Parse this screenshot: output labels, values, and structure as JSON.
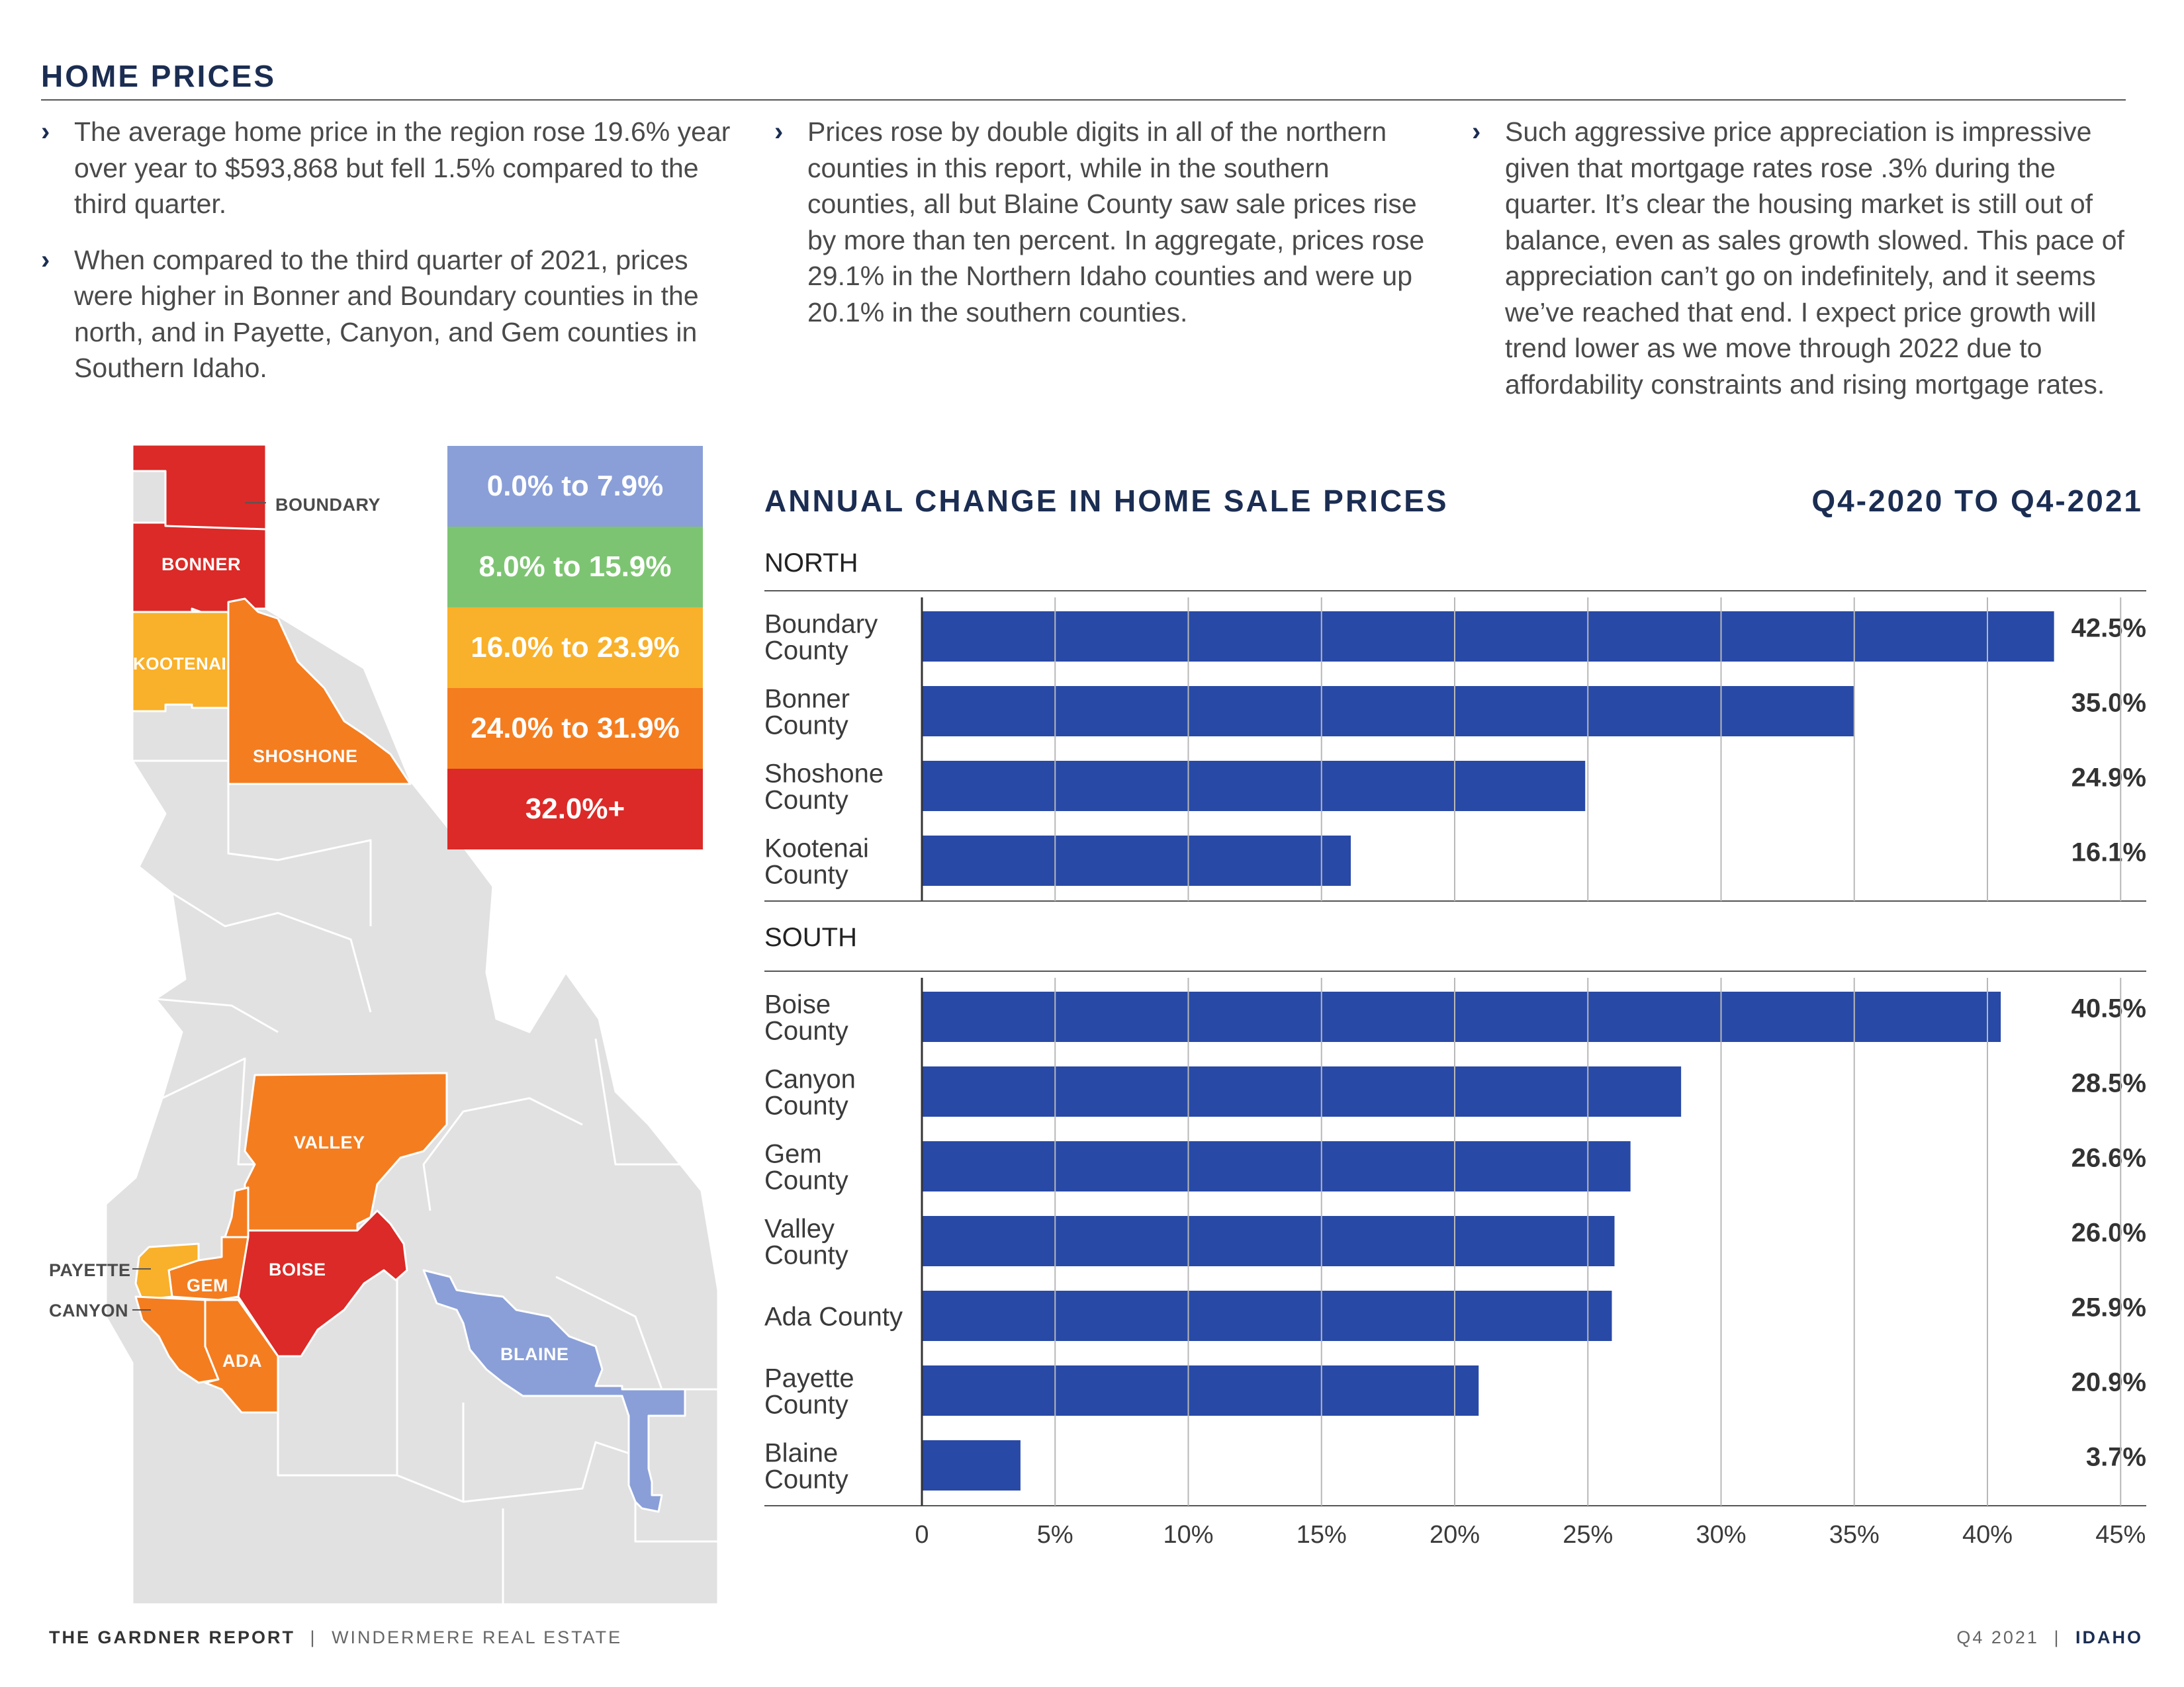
{
  "header": {
    "title": "HOME PRICES"
  },
  "columns": [
    [
      "The average home price in the region rose 19.6% year over year to $593,868 but fell 1.5% compared to the third quarter.",
      "When compared to the third quarter of 2021, prices were higher in Bonner and Boundary counties in the north, and in Payette, Canyon, and Gem counties in Southern Idaho."
    ],
    [
      "Prices rose by double digits in all of the northern counties in this report, while in the southern counties, all but Blaine County saw sale prices rise by more than ten percent. In aggregate, prices rose 29.1% in the Northern Idaho counties and were up 20.1% in the southern counties."
    ],
    [
      "Such aggressive price appreciation is impressive given that mortgage rates rose .3% during the quarter. It’s clear the housing market is still out of balance, even as sales growth slowed. This pace of appreciation can’t go on indefinitely, and it seems we’ve reached that end. I expect price growth will trend lower as we move through 2022 due to affordability constraints and rising mortgage rates."
    ]
  ],
  "map": {
    "labels": {
      "boundary": "BOUNDARY",
      "bonner": "BONNER",
      "kootenai": "KOOTENAI",
      "shoshone": "SHOSHONE",
      "valley": "VALLEY",
      "payette": "PAYETTE",
      "gem": "GEM",
      "boise": "BOISE",
      "canyon": "CANYON",
      "ada": "ADA",
      "blaine": "BLAINE"
    },
    "colors": {
      "base": "#e1e1e1",
      "lt8": "#8a9fd8",
      "8to16": "#7dc472",
      "16to24": "#f9b02a",
      "24to32": "#f47d20",
      "32plus": "#db2a27"
    }
  },
  "legend": [
    {
      "label": "0.0% to  7.9%",
      "color": "#8a9fd8"
    },
    {
      "label": "8.0% to 15.9%",
      "color": "#7dc472"
    },
    {
      "label": "16.0% to 23.9%",
      "color": "#f9b02a"
    },
    {
      "label": "24.0% to 31.9%",
      "color": "#f47d20"
    },
    {
      "label": "32.0%+",
      "color": "#db2a27"
    }
  ],
  "chart_data": {
    "type": "bar",
    "orientation": "horizontal",
    "title": "ANNUAL CHANGE IN HOME SALE PRICES",
    "subtitle": "Q4-2020 TO Q4-2021",
    "xlim": [
      0,
      45
    ],
    "ticks": [
      "0",
      "5%",
      "10%",
      "15%",
      "20%",
      "25%",
      "30%",
      "35%",
      "40%",
      "45%"
    ],
    "bar_color": "#2849a6",
    "groups": [
      {
        "name": "NORTH",
        "categories": [
          [
            "Boundary",
            "County"
          ],
          [
            "Bonner",
            "County"
          ],
          [
            "Shoshone",
            "County"
          ],
          [
            "Kootenai",
            "County"
          ]
        ],
        "values": [
          42.5,
          35.0,
          24.9,
          16.1
        ],
        "labels": [
          "42.5%",
          "35.0%",
          "24.9%",
          "16.1%"
        ]
      },
      {
        "name": "SOUTH",
        "categories": [
          [
            "Boise",
            "County"
          ],
          [
            "Canyon",
            "County"
          ],
          [
            "Gem",
            "County"
          ],
          [
            "Valley",
            "County"
          ],
          [
            "Ada County"
          ],
          [
            "Payette",
            "County"
          ],
          [
            "Blaine",
            "County"
          ]
        ],
        "values": [
          40.5,
          28.5,
          26.6,
          26.0,
          25.9,
          20.9,
          3.7
        ],
        "labels": [
          "40.5%",
          "28.5%",
          "26.6%",
          "26.0%",
          "25.9%",
          "20.9%",
          "3.7%"
        ]
      }
    ]
  },
  "footer": {
    "report": "THE GARDNER REPORT",
    "sep": "|",
    "company": "WINDERMERE REAL ESTATE",
    "quarter": "Q4 2021",
    "region": "IDAHO"
  }
}
